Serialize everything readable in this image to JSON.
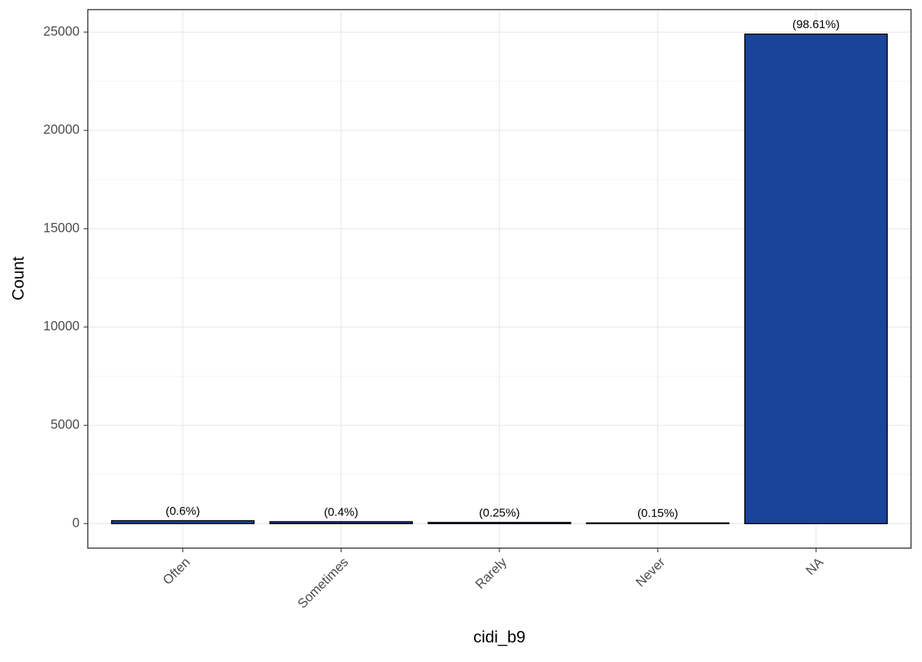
{
  "chart_data": {
    "type": "bar",
    "x_label": "cidi_b9",
    "y_label": "Count",
    "categories": [
      "Often",
      "Sometimes",
      "Rarely",
      "Never",
      "NA"
    ],
    "values": [
      151,
      100,
      62,
      37,
      24900
    ],
    "value_labels": [
      "(0.6%)",
      "(0.4%)",
      "(0.25%)",
      "(0.15%)",
      "(98.61%)"
    ],
    "color": "#1a4499",
    "ylim": [
      -1245,
      26145
    ],
    "yticks": [
      0,
      5000,
      10000,
      15000,
      20000,
      25000
    ],
    "grid": true
  }
}
